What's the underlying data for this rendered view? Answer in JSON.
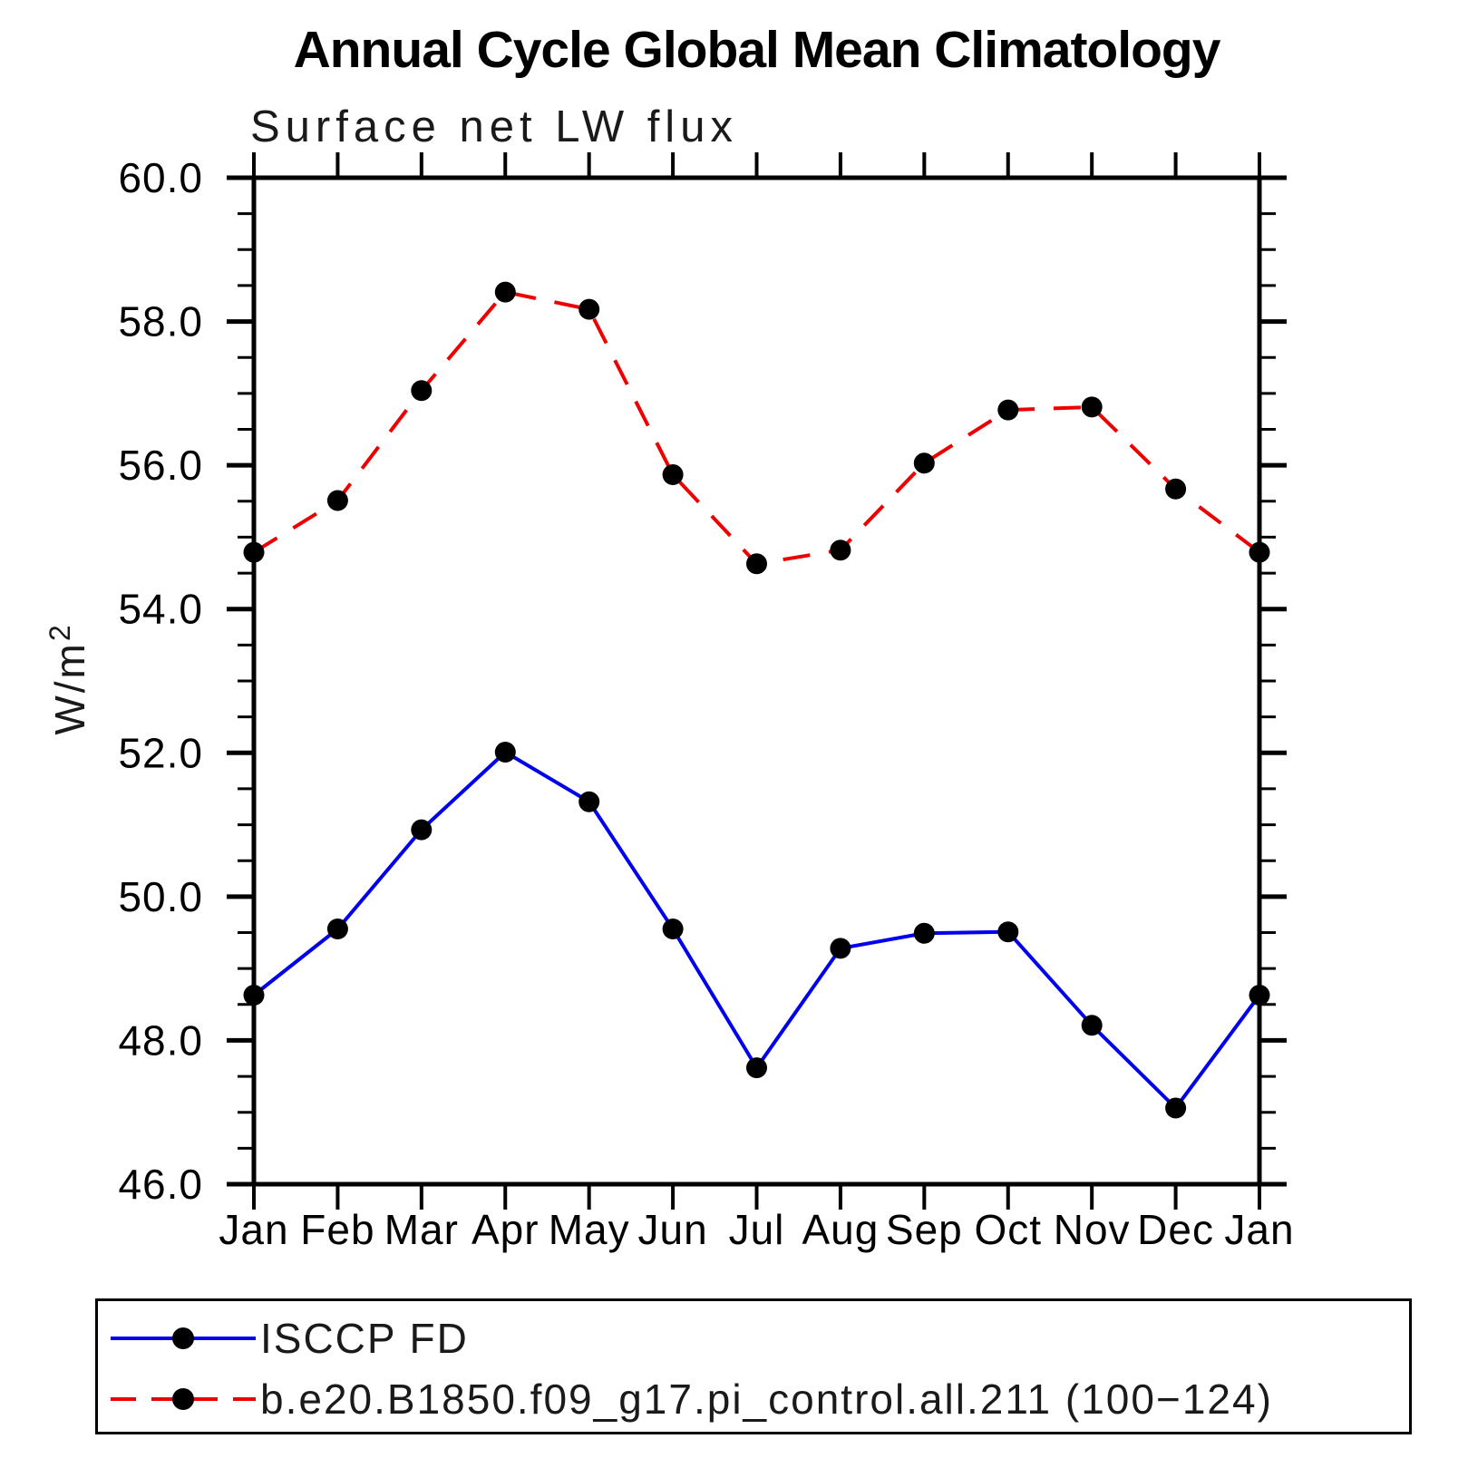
{
  "title": "Annual Cycle Global Mean Climatology",
  "subtitle": "Surface net LW flux",
  "ylabel": {
    "base": "W/m",
    "sup": "2"
  },
  "colors": {
    "axis": "#000000",
    "background": "#ffffff",
    "marker": "#000000"
  },
  "chart_data": {
    "type": "line",
    "title": "Annual Cycle Global Mean Climatology",
    "subtitle": "Surface net LW flux",
    "ylabel": "W/m^2",
    "xlabel": "",
    "grid": false,
    "legend_position": "bottom",
    "x_tick_labels": [
      "Jan",
      "Feb",
      "Mar",
      "Apr",
      "May",
      "Jun",
      "Jul",
      "Aug",
      "Sep",
      "Oct",
      "Nov",
      "Dec",
      "Jan"
    ],
    "ylim": [
      46.0,
      60.0
    ],
    "y_major_step": 2.0,
    "y_minor_step": 0.5,
    "y_tick_labels": [
      "46.0",
      "48.0",
      "50.0",
      "52.0",
      "54.0",
      "56.0",
      "58.0",
      "60.0"
    ],
    "series": [
      {
        "name": "ISCCP FD",
        "color": "#0000ee",
        "line_style": "solid",
        "marker": "filled-circle",
        "marker_color": "#000000",
        "values": [
          48.63,
          49.55,
          50.93,
          52.01,
          51.32,
          49.55,
          47.62,
          49.28,
          49.49,
          49.51,
          48.21,
          47.06,
          48.63
        ]
      },
      {
        "name": "b.e20.B1850.f09_g17.pi_control.all.211 (100−124)",
        "color": "#ee0000",
        "line_style": "dashed",
        "marker": "filled-circle",
        "marker_color": "#000000",
        "values": [
          54.79,
          55.51,
          57.04,
          58.41,
          58.17,
          55.87,
          54.63,
          54.82,
          56.03,
          56.77,
          56.81,
          55.67,
          54.79
        ]
      }
    ]
  }
}
